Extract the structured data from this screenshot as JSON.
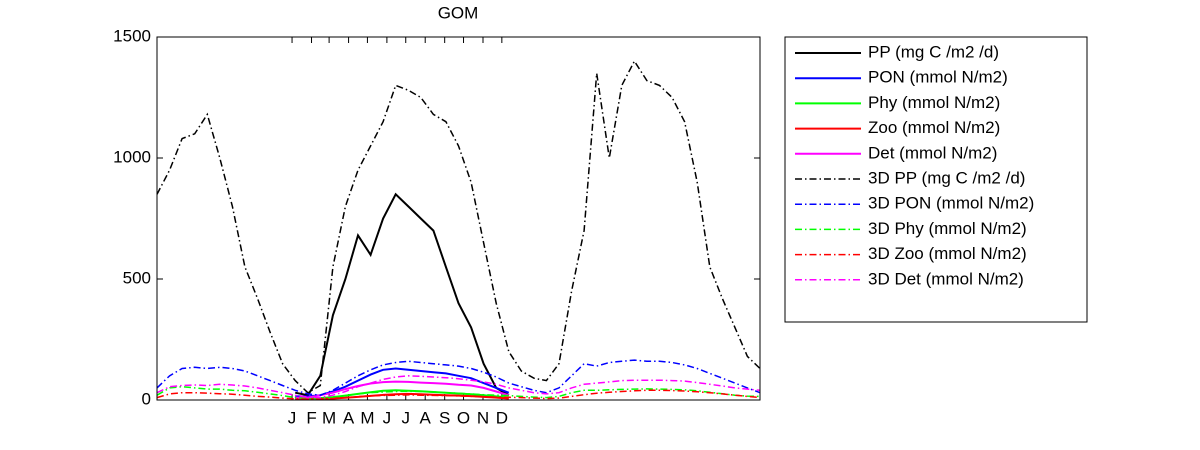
{
  "chart_data": {
    "type": "line",
    "title": "GOM",
    "x": [
      0,
      20,
      40,
      60,
      80,
      100,
      120,
      140,
      160,
      180,
      200,
      220,
      240,
      260,
      280,
      300,
      320,
      340,
      360,
      380,
      400,
      420,
      440,
      460,
      480,
      500,
      520,
      540,
      560,
      580,
      600,
      620,
      640,
      660,
      680,
      700,
      720,
      740,
      760,
      780,
      800,
      820,
      840,
      860,
      880,
      900,
      920,
      940,
      960
    ],
    "xlim": [
      0,
      960
    ],
    "xticks": [
      {
        "value": 215,
        "label": "J"
      },
      {
        "value": 246,
        "label": "F"
      },
      {
        "value": 274,
        "label": "M"
      },
      {
        "value": 305,
        "label": "A"
      },
      {
        "value": 335,
        "label": "M"
      },
      {
        "value": 366,
        "label": "J"
      },
      {
        "value": 396,
        "label": "J"
      },
      {
        "value": 427,
        "label": "A"
      },
      {
        "value": 458,
        "label": "S"
      },
      {
        "value": 488,
        "label": "O"
      },
      {
        "value": 519,
        "label": "N"
      },
      {
        "value": 549,
        "label": "D"
      }
    ],
    "ylim": [
      0,
      1500
    ],
    "yticks": [
      0,
      500,
      1000,
      1500
    ],
    "legend": "outside",
    "series": [
      {
        "name": "PP (mg C /m2 /d)",
        "color": "#000000",
        "style": "solid",
        "values": [
          null,
          null,
          null,
          null,
          null,
          null,
          null,
          null,
          null,
          null,
          null,
          30,
          20,
          100,
          350,
          500,
          680,
          600,
          750,
          850,
          800,
          750,
          700,
          550,
          400,
          300,
          150,
          50,
          20,
          null,
          null,
          null,
          null,
          null,
          null,
          null,
          null,
          null,
          null,
          null,
          null,
          null,
          null,
          null,
          null,
          null,
          null,
          null,
          null
        ]
      },
      {
        "name": "PON (mmol N/m2)",
        "color": "#0000ff",
        "style": "solid",
        "values": [
          null,
          null,
          null,
          null,
          null,
          null,
          null,
          null,
          null,
          null,
          null,
          15,
          15,
          20,
          35,
          55,
          80,
          105,
          125,
          130,
          125,
          120,
          115,
          110,
          100,
          90,
          70,
          50,
          30,
          null,
          null,
          null,
          null,
          null,
          null,
          null,
          null,
          null,
          null,
          null,
          null,
          null,
          null,
          null,
          null,
          null,
          null,
          null,
          null
        ]
      },
      {
        "name": "Phy (mmol N/m2)",
        "color": "#00ff00",
        "style": "solid",
        "values": [
          null,
          null,
          null,
          null,
          null,
          null,
          null,
          null,
          null,
          null,
          null,
          5,
          5,
          8,
          12,
          18,
          25,
          32,
          38,
          40,
          38,
          36,
          33,
          30,
          27,
          24,
          20,
          15,
          10,
          null,
          null,
          null,
          null,
          null,
          null,
          null,
          null,
          null,
          null,
          null,
          null,
          null,
          null,
          null,
          null,
          null,
          null,
          null,
          null
        ]
      },
      {
        "name": "Zoo (mmol N/m2)",
        "color": "#ff0000",
        "style": "solid",
        "values": [
          null,
          null,
          null,
          null,
          null,
          null,
          null,
          null,
          null,
          null,
          null,
          3,
          3,
          4,
          6,
          9,
          13,
          17,
          21,
          24,
          25,
          24,
          22,
          20,
          18,
          16,
          13,
          10,
          6,
          null,
          null,
          null,
          null,
          null,
          null,
          null,
          null,
          null,
          null,
          null,
          null,
          null,
          null,
          null,
          null,
          null,
          null,
          null,
          null
        ]
      },
      {
        "name": "Det (mmol N/m2)",
        "color": "#ff00ff",
        "style": "solid",
        "values": [
          null,
          null,
          null,
          null,
          null,
          null,
          null,
          null,
          null,
          null,
          null,
          10,
          10,
          20,
          30,
          45,
          58,
          68,
          74,
          76,
          75,
          72,
          70,
          67,
          63,
          60,
          50,
          35,
          20,
          null,
          null,
          null,
          null,
          null,
          null,
          null,
          null,
          null,
          null,
          null,
          null,
          null,
          null,
          null,
          null,
          null,
          null,
          null,
          null
        ]
      },
      {
        "name": "3D PP (mg C /m2 /d)",
        "color": "#000000",
        "style": "dashdot",
        "values": [
          850,
          950,
          1080,
          1100,
          1180,
          1000,
          800,
          550,
          420,
          280,
          150,
          80,
          30,
          60,
          550,
          800,
          950,
          1050,
          1150,
          1300,
          1280,
          1250,
          1180,
          1150,
          1050,
          900,
          650,
          400,
          200,
          120,
          90,
          80,
          150,
          450,
          700,
          1350,
          1000,
          1300,
          1400,
          1320,
          1300,
          1250,
          1150,
          900,
          550,
          420,
          300,
          180,
          130
        ]
      },
      {
        "name": "3D PON (mmol N/m2)",
        "color": "#0000ff",
        "style": "dashdot",
        "values": [
          50,
          100,
          130,
          135,
          130,
          135,
          130,
          120,
          100,
          80,
          60,
          40,
          25,
          20,
          40,
          70,
          100,
          125,
          145,
          155,
          160,
          155,
          150,
          145,
          140,
          130,
          115,
          95,
          70,
          55,
          40,
          30,
          50,
          100,
          150,
          140,
          155,
          160,
          165,
          160,
          160,
          155,
          145,
          130,
          110,
          90,
          70,
          50,
          30
        ]
      },
      {
        "name": "3D Phy (mmol N/m2)",
        "color": "#00ff00",
        "style": "dashdot",
        "values": [
          20,
          50,
          55,
          50,
          45,
          45,
          40,
          38,
          32,
          25,
          18,
          10,
          5,
          5,
          10,
          18,
          25,
          30,
          33,
          35,
          36,
          35,
          33,
          30,
          28,
          25,
          22,
          20,
          18,
          15,
          12,
          10,
          15,
          30,
          40,
          40,
          42,
          44,
          45,
          46,
          45,
          44,
          42,
          38,
          32,
          26,
          20,
          16,
          15
        ]
      },
      {
        "name": "3D Zoo (mmol N/m2)",
        "color": "#ff0000",
        "style": "dashdot",
        "values": [
          10,
          25,
          30,
          30,
          28,
          26,
          24,
          20,
          15,
          12,
          8,
          5,
          3,
          3,
          6,
          10,
          14,
          17,
          19,
          20,
          21,
          20,
          19,
          18,
          17,
          15,
          14,
          12,
          11,
          10,
          8,
          6,
          8,
          15,
          22,
          28,
          32,
          35,
          38,
          40,
          40,
          39,
          37,
          34,
          30,
          25,
          20,
          15,
          10
        ]
      },
      {
        "name": "3D Det (mmol N/m2)",
        "color": "#ff00ff",
        "style": "dashdot",
        "values": [
          30,
          55,
          60,
          62,
          60,
          65,
          62,
          58,
          50,
          40,
          30,
          20,
          12,
          10,
          20,
          35,
          55,
          70,
          85,
          95,
          100,
          98,
          95,
          92,
          88,
          82,
          75,
          65,
          50,
          40,
          30,
          25,
          30,
          50,
          65,
          70,
          75,
          80,
          82,
          82,
          82,
          80,
          78,
          72,
          65,
          58,
          50,
          45,
          40
        ]
      }
    ]
  }
}
